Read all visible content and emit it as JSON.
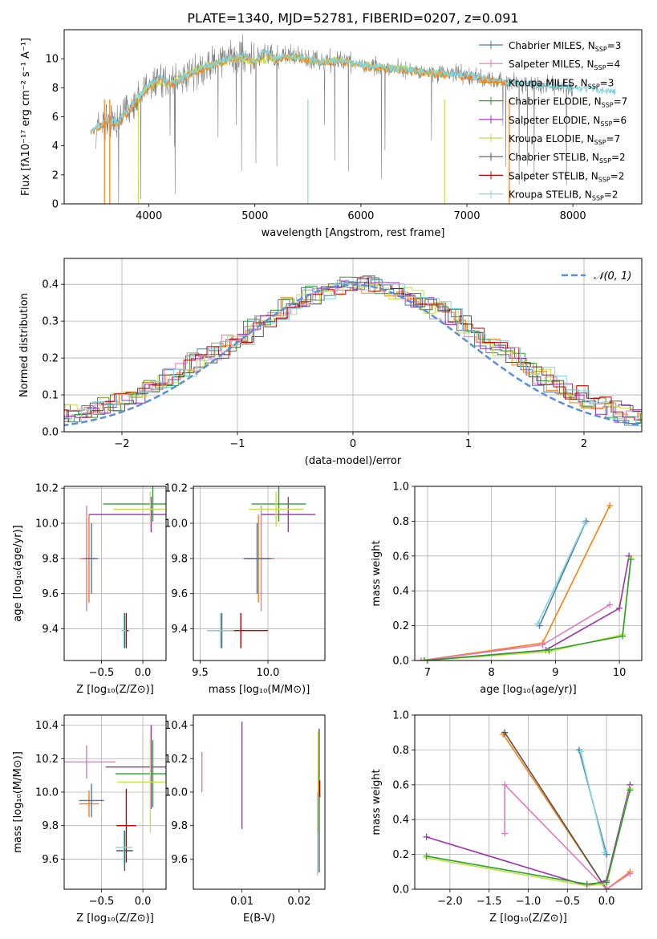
{
  "figure": {
    "title": "PLATE=1340, MJD=52781, FIBERID=0207, z=0.091"
  },
  "colors": {
    "Chabrier MILES": "#4e79a7",
    "Salpeter MILES": "#e377c2",
    "Kroupa MILES": "#ff7f0e",
    "Chabrier ELODIE": "#2ca02c",
    "Salpeter ELODIE": "#9b30b0",
    "Kroupa ELODIE": "#c5e04a",
    "Chabrier STELIB": "#555555",
    "Salpeter STELIB": "#c00000",
    "Kroupa STELIB": "#7fd8df",
    "spectrum": "#808080",
    "normal_curve": "#5b8fd6"
  },
  "chart_data": [
    {
      "id": "spectrum",
      "type": "line",
      "xlabel": "wavelength [Angstrom, rest frame]",
      "ylabel": "Flux [fλ10⁻¹⁷ erg cm⁻² s⁻¹ A⁻¹]",
      "xlim": [
        3200,
        8650
      ],
      "ylim": [
        0,
        12
      ],
      "xticks": [
        4000,
        5000,
        6000,
        7000,
        8000
      ],
      "yticks": [
        0,
        2,
        4,
        6,
        8,
        10
      ],
      "grid": false,
      "legend_position": "top-right",
      "legend": [
        "Chabrier MILES, N_SSP=3",
        "Salpeter MILES, N_SSP=4",
        "Kroupa MILES, N_SSP=3",
        "Chabrier ELODIE, N_SSP=7",
        "Salpeter ELODIE, N_SSP=6",
        "Kroupa ELODIE, N_SSP=7",
        "Chabrier STELIB, N_SSP=2",
        "Salpeter STELIB, N_SSP=2",
        "Kroupa STELIB, N_SSP=2"
      ],
      "legend_labels": [
        {
          "name": "Chabrier MILES",
          "n": "3"
        },
        {
          "name": "Salpeter MILES",
          "n": "4"
        },
        {
          "name": "Kroupa MILES",
          "n": "3"
        },
        {
          "name": "Chabrier ELODIE",
          "n": "7"
        },
        {
          "name": "Salpeter ELODIE",
          "n": "6"
        },
        {
          "name": "Kroupa ELODIE",
          "n": "7"
        },
        {
          "name": "Chabrier STELIB",
          "n": "2"
        },
        {
          "name": "Salpeter STELIB",
          "n": "2"
        },
        {
          "name": "Kroupa STELIB",
          "n": "2"
        }
      ],
      "series": [
        {
          "name": "Kroupa STELIB",
          "x": [
            3450,
            3600,
            3700,
            3800,
            3900,
            4000,
            4100,
            4200,
            4300,
            4400,
            4500,
            4600,
            4700,
            4800,
            4900,
            5000,
            5100,
            5200,
            5300,
            5400,
            5500,
            5600,
            5800,
            6000,
            6200,
            6400,
            6600,
            6800,
            7000,
            7200,
            7400,
            7600,
            7800,
            8000,
            8200,
            8400
          ],
          "y": [
            5.0,
            5.8,
            5.6,
            6.5,
            7.3,
            8.2,
            8.7,
            8.3,
            8.6,
            9.1,
            9.3,
            9.6,
            9.9,
            10.1,
            10.2,
            9.8,
            10.4,
            10.0,
            10.2,
            10.1,
            10.0,
            9.8,
            9.9,
            9.6,
            9.4,
            9.3,
            9.1,
            9.0,
            8.9,
            8.6,
            8.4,
            8.3,
            8.1,
            8.0,
            7.9,
            7.7
          ]
        },
        {
          "name": "Kroupa MILES",
          "x": [
            3450,
            3600,
            3700,
            3800,
            3900,
            4000,
            4100,
            4200,
            4300,
            4400,
            4500,
            4600,
            4700,
            4800,
            4900,
            5000,
            5100,
            5200,
            5300,
            5400,
            5500,
            5600,
            5800,
            6000,
            6200,
            6400,
            6600,
            6800,
            7000,
            7200,
            7400
          ],
          "y": [
            4.9,
            5.6,
            5.5,
            6.3,
            7.1,
            8.0,
            8.6,
            8.2,
            8.5,
            9.0,
            9.2,
            9.5,
            9.8,
            10.0,
            10.1,
            9.7,
            10.3,
            9.9,
            10.1,
            10.0,
            9.9,
            9.7,
            9.8,
            9.5,
            9.3,
            9.2,
            9.0,
            8.9,
            8.8,
            8.5,
            8.3
          ]
        },
        {
          "name": "Kroupa ELODIE",
          "x": [
            3900,
            4000,
            4200,
            4400,
            4600,
            4800,
            5000,
            5200,
            5400,
            5600,
            5800,
            6000,
            6200,
            6400,
            6600,
            6800
          ],
          "y": [
            7.4,
            8.1,
            8.4,
            9.1,
            9.6,
            10.0,
            9.8,
            10.0,
            10.1,
            9.8,
            9.9,
            9.6,
            9.4,
            9.3,
            9.1,
            9.0
          ]
        }
      ],
      "observed": {
        "name": "data",
        "x_range": [
          3500,
          8000
        ]
      },
      "notch_lines": [
        {
          "x": 3580,
          "series": "Kroupa MILES"
        },
        {
          "x": 3630,
          "series": "Kroupa MILES"
        },
        {
          "x": 3900,
          "series": "Kroupa ELODIE"
        },
        {
          "x": 5500,
          "series": "Kroupa STELIB"
        },
        {
          "x": 6790,
          "series": "Kroupa ELODIE"
        },
        {
          "x": 7400,
          "series": "Kroupa MILES"
        }
      ]
    },
    {
      "id": "residual-histogram",
      "type": "line",
      "xlabel": "(data-model)/error",
      "ylabel": "Normed distribution",
      "xlim": [
        -2.5,
        2.5
      ],
      "ylim": [
        0,
        0.47
      ],
      "xticks": [
        -2,
        -1,
        0,
        1,
        2
      ],
      "yticks": [
        0.0,
        0.1,
        0.2,
        0.3,
        0.4
      ],
      "grid": true,
      "legend_position": "top-right",
      "legend": [
        "𝒩(0, 1)"
      ],
      "bin_width": 0.1,
      "series_base": [
        0.02,
        0.02,
        0.03,
        0.03,
        0.04,
        0.05,
        0.05,
        0.06,
        0.07,
        0.08,
        0.09,
        0.1,
        0.12,
        0.14,
        0.15,
        0.17,
        0.19,
        0.21,
        0.22,
        0.24,
        0.26,
        0.28,
        0.3,
        0.32,
        0.34,
        0.35,
        0.37,
        0.38,
        0.39,
        0.4,
        0.4,
        0.4,
        0.39,
        0.38,
        0.37,
        0.36,
        0.34,
        0.33,
        0.31,
        0.29,
        0.27,
        0.25,
        0.23,
        0.21,
        0.19,
        0.17,
        0.15,
        0.13,
        0.11,
        0.1,
        0.08,
        0.07,
        0.06,
        0.05,
        0.04,
        0.04,
        0.03,
        0.03,
        0.02,
        0.02
      ],
      "normal_curve": {
        "name": "𝒩(0, 1)",
        "mu": 0,
        "sigma": 1
      }
    },
    {
      "id": "age-vs-Z",
      "type": "scatter",
      "xlabel": "Z [log₁₀(Z/Z⊙)]",
      "ylabel": "age  [log₁₀(age/yr)]",
      "xlim": [
        -0.95,
        0.28
      ],
      "ylim": [
        9.22,
        10.21
      ],
      "xticks": [
        -0.5,
        0.0
      ],
      "yticks": [
        9.4,
        9.6,
        9.8,
        10.0,
        10.2
      ],
      "grid": true,
      "points": [
        {
          "series": "Salpeter MILES",
          "x": -0.68,
          "y": 9.8,
          "xerr": 0.08,
          "yerr": 0.3
        },
        {
          "series": "Kroupa MILES",
          "x": -0.65,
          "y": 9.8,
          "xerr": 0.08,
          "yerr": 0.25
        },
        {
          "series": "Chabrier MILES",
          "x": -0.62,
          "y": 9.8,
          "xerr": 0.08,
          "yerr": 0.2
        },
        {
          "series": "Salpeter ELODIE",
          "x": 0.1,
          "y": 10.05,
          "xerr": 0.75,
          "yerr": 0.1
        },
        {
          "series": "Chabrier ELODIE",
          "x": 0.12,
          "y": 10.11,
          "xerr": 0.6,
          "yerr": 0.1
        },
        {
          "series": "Kroupa ELODIE",
          "x": 0.09,
          "y": 10.08,
          "xerr": 0.45,
          "yerr": 0.1
        },
        {
          "series": "Chabrier STELIB",
          "x": -0.22,
          "y": 9.39,
          "xerr": 0.03,
          "yerr": 0.1
        },
        {
          "series": "Salpeter STELIB",
          "x": -0.2,
          "y": 9.39,
          "xerr": 0.03,
          "yerr": 0.1
        },
        {
          "series": "Kroupa STELIB",
          "x": -0.23,
          "y": 9.39,
          "xerr": 0.03,
          "yerr": 0.1
        }
      ]
    },
    {
      "id": "age-vs-mass",
      "type": "scatter",
      "xlabel": "mass [log₁₀(M/M⊙)]",
      "ylabel": "",
      "xlim": [
        9.45,
        10.42
      ],
      "ylim": [
        9.22,
        10.21
      ],
      "xticks": [
        9.5,
        10.0
      ],
      "yticks": [
        9.4,
        9.6,
        9.8,
        10.0,
        10.2
      ],
      "grid": true,
      "points": [
        {
          "series": "Salpeter MILES",
          "x": 9.95,
          "y": 9.8,
          "xerr": 0.1,
          "yerr": 0.3
        },
        {
          "series": "Kroupa MILES",
          "x": 9.93,
          "y": 9.8,
          "xerr": 0.1,
          "yerr": 0.25
        },
        {
          "series": "Chabrier MILES",
          "x": 9.92,
          "y": 9.8,
          "xerr": 0.1,
          "yerr": 0.2
        },
        {
          "series": "Salpeter ELODIE",
          "x": 10.15,
          "y": 10.05,
          "xerr": 0.2,
          "yerr": 0.1
        },
        {
          "series": "Chabrier ELODIE",
          "x": 10.08,
          "y": 10.11,
          "xerr": 0.2,
          "yerr": 0.1
        },
        {
          "series": "Kroupa ELODIE",
          "x": 10.06,
          "y": 10.08,
          "xerr": 0.2,
          "yerr": 0.1
        },
        {
          "series": "Chabrier STELIB",
          "x": 9.66,
          "y": 9.39,
          "xerr": 0.1,
          "yerr": 0.1
        },
        {
          "series": "Salpeter STELIB",
          "x": 9.8,
          "y": 9.39,
          "xerr": 0.2,
          "yerr": 0.1
        },
        {
          "series": "Kroupa STELIB",
          "x": 9.65,
          "y": 9.39,
          "xerr": 0.1,
          "yerr": 0.1
        }
      ]
    },
    {
      "id": "weight-vs-age",
      "type": "line",
      "xlabel": "age  [log₁₀(age/yr)]",
      "ylabel": "mass weight",
      "xlim": [
        6.8,
        10.35
      ],
      "ylim": [
        0,
        1.0
      ],
      "xticks": [
        7,
        8,
        9,
        10
      ],
      "yticks": [
        0.0,
        0.2,
        0.4,
        0.6,
        0.8,
        1.0
      ],
      "grid": true,
      "series": [
        {
          "name": "Chabrier MILES",
          "x": [
            8.75,
            9.48
          ],
          "y": [
            0.2,
            0.8
          ]
        },
        {
          "name": "Kroupa STELIB",
          "x": [
            8.72,
            9.46
          ],
          "y": [
            0.21,
            0.79
          ]
        },
        {
          "name": "Kroupa MILES",
          "x": [
            6.9,
            8.8,
            9.85
          ],
          "y": [
            0.0,
            0.1,
            0.89
          ]
        },
        {
          "name": "Salpeter MILES",
          "x": [
            6.9,
            8.8,
            9.85
          ],
          "y": [
            0.0,
            0.09,
            0.32
          ]
        },
        {
          "name": "Salpeter ELODIE",
          "x": [
            6.95,
            8.85,
            10.0,
            10.15
          ],
          "y": [
            0.0,
            0.06,
            0.3,
            0.6
          ]
        },
        {
          "name": "Kroupa ELODIE",
          "x": [
            6.95,
            8.9,
            10.05,
            10.18
          ],
          "y": [
            0.0,
            0.05,
            0.15,
            0.59
          ]
        },
        {
          "name": "Chabrier ELODIE",
          "x": [
            6.95,
            8.9,
            10.05,
            10.18
          ],
          "y": [
            0.0,
            0.06,
            0.14,
            0.58
          ]
        }
      ]
    },
    {
      "id": "mass-vs-Z",
      "type": "scatter",
      "xlabel": "Z [log₁₀(Z/Z⊙)]",
      "ylabel": "mass [log₁₀(M/M⊙)]",
      "xlim": [
        -0.95,
        0.28
      ],
      "ylim": [
        9.42,
        10.46
      ],
      "xticks": [
        -0.5,
        0.0
      ],
      "yticks": [
        9.6,
        9.8,
        10.0,
        10.2,
        10.4
      ],
      "grid": true,
      "points": [
        {
          "series": "Salpeter MILES",
          "x": -0.68,
          "y": 10.18,
          "xerr": 0.35,
          "yerr": 0.1
        },
        {
          "series": "Kroupa MILES",
          "x": -0.65,
          "y": 9.93,
          "xerr": 0.12,
          "yerr": 0.08
        },
        {
          "series": "Chabrier MILES",
          "x": -0.62,
          "y": 9.95,
          "xerr": 0.15,
          "yerr": 0.1
        },
        {
          "series": "Salpeter ELODIE",
          "x": 0.1,
          "y": 10.15,
          "xerr": 0.55,
          "yerr": 0.25
        },
        {
          "series": "Chabrier ELODIE",
          "x": 0.12,
          "y": 10.11,
          "xerr": 0.45,
          "yerr": 0.2
        },
        {
          "series": "Kroupa ELODIE",
          "x": 0.09,
          "y": 10.06,
          "xerr": 0.4,
          "yerr": 0.3
        },
        {
          "series": "Chabrier STELIB",
          "x": -0.22,
          "y": 9.65,
          "xerr": 0.1,
          "yerr": 0.12
        },
        {
          "series": "Salpeter STELIB",
          "x": -0.2,
          "y": 9.8,
          "xerr": 0.12,
          "yerr": 0.22
        },
        {
          "series": "Kroupa STELIB",
          "x": -0.23,
          "y": 9.67,
          "xerr": 0.1,
          "yerr": 0.1
        }
      ]
    },
    {
      "id": "mass-vs-EBV",
      "type": "scatter",
      "xlabel": "E(B-V)",
      "ylabel": "",
      "xlim": [
        0.0015,
        0.0245
      ],
      "ylim": [
        9.42,
        10.46
      ],
      "xticks": [
        0.01,
        0.02
      ],
      "yticks": [
        9.6,
        9.8,
        10.0,
        10.2,
        10.4
      ],
      "grid": false,
      "points": [
        {
          "series": "Salpeter MILES",
          "x": 0.003,
          "y": 10.12,
          "yerr": 0.12
        },
        {
          "series": "Salpeter ELODIE",
          "x": 0.01,
          "y": 10.1,
          "yerr": 0.32
        },
        {
          "series": "Chabrier STELIB",
          "x": 0.0235,
          "y": 9.95,
          "yerr": 0.43
        },
        {
          "series": "Kroupa ELODIE",
          "x": 0.0233,
          "y": 10.06,
          "yerr": 0.3
        },
        {
          "series": "Kroupa STELIB",
          "x": 0.0232,
          "y": 9.75,
          "yerr": 0.25
        },
        {
          "series": "Salpeter STELIB",
          "x": 0.0236,
          "y": 10.02,
          "yerr": 0.05
        }
      ]
    },
    {
      "id": "weight-vs-Z",
      "type": "line",
      "xlabel": "Z [log₁₀(Z/Z⊙)]",
      "ylabel": "mass weight",
      "xlim": [
        -2.45,
        0.45
      ],
      "ylim": [
        0,
        1.0
      ],
      "xticks": [
        -2.0,
        -1.5,
        -1.0,
        -0.5,
        0.0
      ],
      "yticks": [
        0.0,
        0.2,
        0.4,
        0.6,
        0.8,
        1.0
      ],
      "grid": true,
      "series": [
        {
          "name": "Chabrier MILES",
          "x": [
            -0.35,
            0.0
          ],
          "y": [
            0.8,
            0.2
          ]
        },
        {
          "name": "Kroupa STELIB",
          "x": [
            -0.33,
            -0.02
          ],
          "y": [
            0.79,
            0.21
          ]
        },
        {
          "name": "Kroupa MILES",
          "x": [
            -1.32,
            0.0,
            0.3
          ],
          "y": [
            0.89,
            0.0,
            0.1
          ]
        },
        {
          "name": "Chabrier STELIB",
          "x": [
            -1.3,
            0.0
          ],
          "y": [
            0.9,
            0.0
          ]
        },
        {
          "name": "Salpeter MILES",
          "x": [
            -1.3,
            -1.3,
            0.0,
            0.3
          ],
          "y": [
            0.32,
            0.6,
            0.0,
            0.09
          ]
        },
        {
          "name": "Salpeter ELODIE",
          "x": [
            -2.3,
            -0.25,
            0.0,
            0.3
          ],
          "y": [
            0.3,
            0.02,
            0.05,
            0.6
          ]
        },
        {
          "name": "Kroupa ELODIE",
          "x": [
            -2.3,
            -0.25,
            0.0,
            0.3
          ],
          "y": [
            0.18,
            0.02,
            0.03,
            0.58
          ]
        },
        {
          "name": "Chabrier ELODIE",
          "x": [
            -2.3,
            -0.25,
            0.0,
            0.3
          ],
          "y": [
            0.19,
            0.03,
            0.04,
            0.57
          ]
        }
      ]
    }
  ]
}
